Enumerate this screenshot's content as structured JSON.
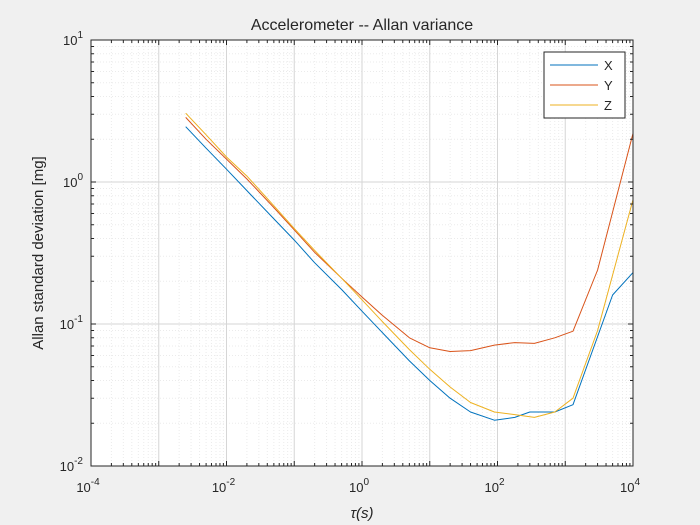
{
  "chart_data": {
    "type": "line",
    "title": "Accelerometer -- Allan variance",
    "xlabel": "τ(s)",
    "ylabel": "Allan standard deviation [mg]",
    "xscale": "log",
    "yscale": "log",
    "xlim": [
      0.0001,
      10000
    ],
    "ylim": [
      0.01,
      10
    ],
    "x_ticks": [
      {
        "value": 0.0001,
        "base": "10",
        "exp": "-4"
      },
      {
        "value": 0.01,
        "base": "10",
        "exp": "-2"
      },
      {
        "value": 1,
        "base": "10",
        "exp": "0"
      },
      {
        "value": 100,
        "base": "10",
        "exp": "2"
      },
      {
        "value": 10000,
        "base": "10",
        "exp": "4"
      }
    ],
    "y_ticks": [
      {
        "value": 0.01,
        "base": "10",
        "exp": "-2"
      },
      {
        "value": 0.1,
        "base": "10",
        "exp": "-1"
      },
      {
        "value": 1,
        "base": "10",
        "exp": "0"
      },
      {
        "value": 10,
        "base": "10",
        "exp": "1"
      }
    ],
    "grid": "major and minor",
    "legend_position": "top-right",
    "series": [
      {
        "name": "X",
        "color": "#0072BD",
        "x": [
          0.0025,
          0.005,
          0.01,
          0.02,
          0.05,
          0.1,
          0.2,
          0.5,
          1,
          2,
          5,
          10,
          20,
          40,
          90,
          180,
          300,
          700,
          1300,
          5000,
          10000
        ],
        "y": [
          2.45,
          1.73,
          1.23,
          0.87,
          0.55,
          0.39,
          0.27,
          0.175,
          0.123,
          0.087,
          0.055,
          0.04,
          0.03,
          0.024,
          0.021,
          0.022,
          0.024,
          0.024,
          0.027,
          0.16,
          0.23
        ]
      },
      {
        "name": "Y",
        "color": "#D95319",
        "x": [
          0.0025,
          0.005,
          0.01,
          0.02,
          0.05,
          0.1,
          0.2,
          0.5,
          1,
          2,
          5,
          10,
          20,
          40,
          90,
          180,
          350,
          700,
          1300,
          3000,
          10000
        ],
        "y": [
          2.85,
          2.0,
          1.45,
          1.05,
          0.66,
          0.46,
          0.32,
          0.21,
          0.155,
          0.115,
          0.08,
          0.068,
          0.064,
          0.065,
          0.071,
          0.074,
          0.073,
          0.08,
          0.089,
          0.24,
          2.2
        ]
      },
      {
        "name": "Z",
        "color": "#EDB120",
        "x": [
          0.0025,
          0.005,
          0.01,
          0.02,
          0.05,
          0.1,
          0.2,
          0.5,
          1,
          2,
          5,
          10,
          20,
          40,
          90,
          180,
          350,
          700,
          1300,
          3000,
          10000
        ],
        "y": [
          3.05,
          2.15,
          1.5,
          1.1,
          0.68,
          0.47,
          0.33,
          0.21,
          0.148,
          0.104,
          0.066,
          0.048,
          0.036,
          0.028,
          0.024,
          0.023,
          0.022,
          0.024,
          0.03,
          0.09,
          0.75
        ]
      }
    ]
  }
}
